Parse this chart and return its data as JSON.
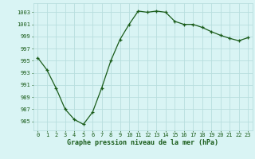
{
  "x": [
    0,
    1,
    2,
    3,
    4,
    5,
    6,
    7,
    8,
    9,
    10,
    11,
    12,
    13,
    14,
    15,
    16,
    17,
    18,
    19,
    20,
    21,
    22,
    23
  ],
  "y": [
    995.5,
    993.5,
    990.5,
    987.0,
    985.3,
    984.5,
    986.5,
    990.5,
    995.0,
    998.5,
    1001.0,
    1003.2,
    1003.0,
    1003.2,
    1003.0,
    1001.5,
    1001.0,
    1001.0,
    1000.5,
    999.8,
    999.2,
    998.7,
    998.3,
    998.8
  ],
  "line_color": "#1a5c1a",
  "marker": "+",
  "bg_color": "#d9f4f4",
  "grid_color": "#b8dede",
  "xlabel": "Graphe pression niveau de la mer (hPa)",
  "ylabel_ticks": [
    985,
    987,
    989,
    991,
    993,
    995,
    997,
    999,
    1001,
    1003
  ],
  "ylim": [
    983.5,
    1004.5
  ],
  "xlim": [
    -0.5,
    23.5
  ],
  "xticks": [
    0,
    1,
    2,
    3,
    4,
    5,
    6,
    7,
    8,
    9,
    10,
    11,
    12,
    13,
    14,
    15,
    16,
    17,
    18,
    19,
    20,
    21,
    22,
    23
  ],
  "tick_fontsize": 5.0,
  "xlabel_fontsize": 6.0,
  "linewidth": 0.9,
  "markersize": 3.5
}
